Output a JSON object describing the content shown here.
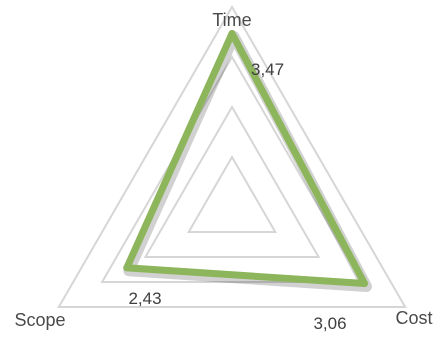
{
  "chart_data": {
    "type": "radar",
    "categories": [
      "Time",
      "Cost",
      "Scope"
    ],
    "series": [
      {
        "values": [
          3.47,
          3.06,
          2.43
        ],
        "data_labels": [
          "3,47",
          "3,06",
          "2,43"
        ],
        "color": "#8db55b"
      }
    ],
    "rlim": [
      0,
      4
    ],
    "grid_levels": [
      1,
      2,
      3,
      4
    ],
    "legend": "none",
    "grid": true
  }
}
